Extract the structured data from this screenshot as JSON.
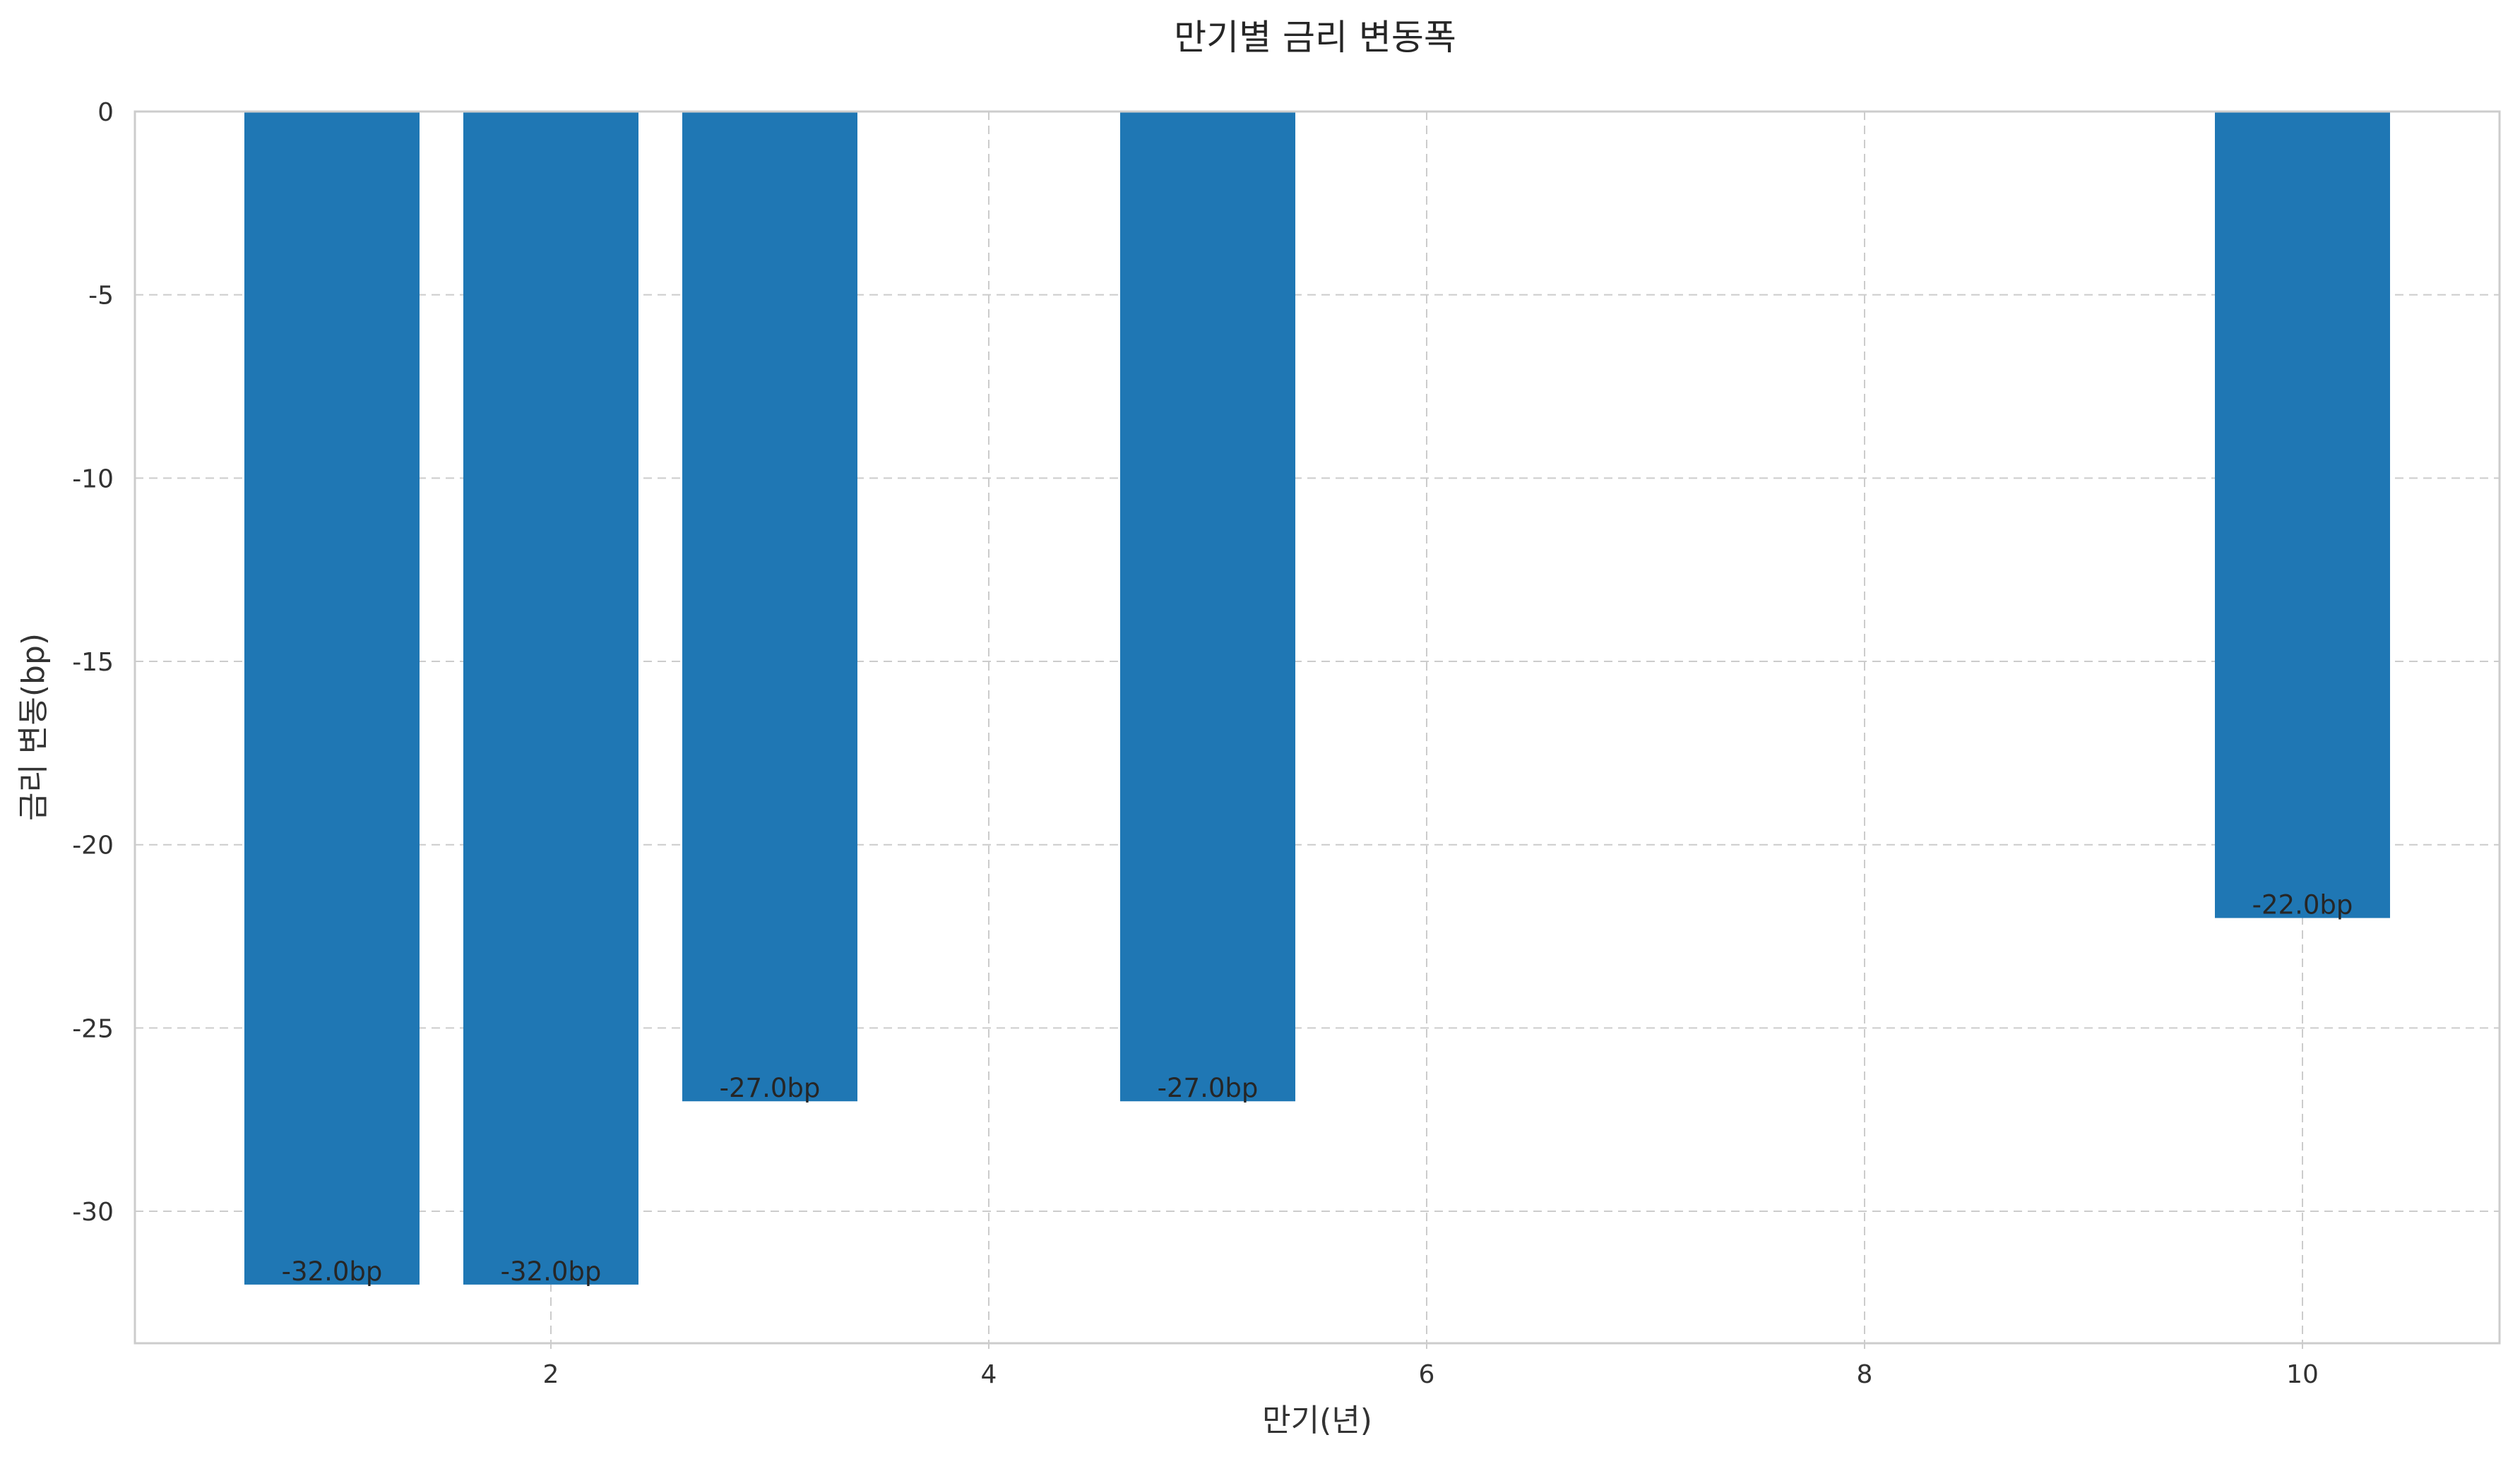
{
  "chart_data": {
    "type": "bar",
    "title": "만기별 금리 변동폭",
    "xlabel": "만기(년)",
    "ylabel": "금리 변동(bp)",
    "x": [
      1,
      2,
      3,
      5,
      10
    ],
    "values": [
      -32.0,
      -32.0,
      -27.0,
      -27.0,
      -22.0
    ],
    "data_labels": [
      "-32.0bp",
      "-32.0bp",
      "-27.0bp",
      "-27.0bp",
      "-22.0bp"
    ],
    "bar_width": 0.8,
    "xlim": [
      0.1,
      10.9
    ],
    "ylim": [
      -33.6,
      0
    ],
    "xticks": [
      2,
      4,
      6,
      8,
      10
    ],
    "yticks": [
      0,
      -5,
      -10,
      -15,
      -20,
      -25,
      -30
    ],
    "grid": true,
    "bar_color": "#1f77b4"
  }
}
